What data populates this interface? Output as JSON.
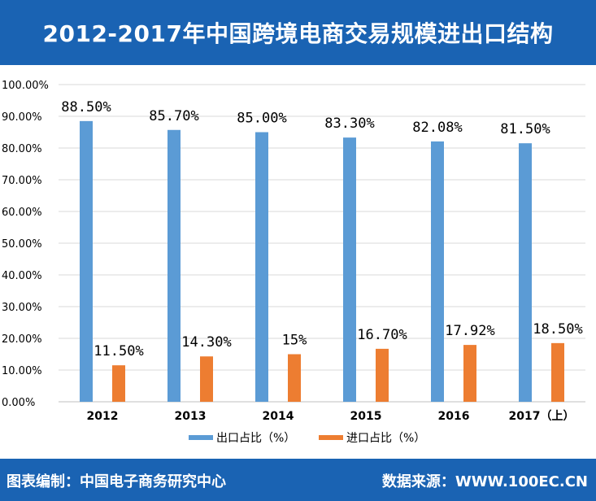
{
  "header": {
    "title": "2012-2017年中国跨境电商交易规模进出口结构"
  },
  "footer": {
    "left_text": "图表编制：中国电子商务研究中心",
    "right_text": "数据来源：WWW.100EC.CN"
  },
  "colors": {
    "header_bg": "#1a63b3",
    "export_bar": "#5b9bd5",
    "import_bar": "#ed7d31",
    "grid": "#d9d9d9"
  },
  "chart_data": {
    "type": "bar",
    "title": "2012-2017年中国跨境电商交易规模进出口结构",
    "categories": [
      "2012",
      "2013",
      "2014",
      "2015",
      "2016",
      "2017（上）"
    ],
    "series": [
      {
        "name": "出口占比（%）",
        "values": [
          88.5,
          85.7,
          85.0,
          83.3,
          82.08,
          81.5
        ],
        "labels": [
          "88.50%",
          "85.70%",
          "85.00%",
          "83.30%",
          "82.08%",
          "81.50%"
        ],
        "color": "#5b9bd5"
      },
      {
        "name": "进口占比（%）",
        "values": [
          11.5,
          14.3,
          15,
          16.7,
          17.92,
          18.5
        ],
        "labels": [
          "11.50%",
          "14.30%",
          "15%",
          "16.70%",
          "17.92%",
          "18.50%"
        ],
        "color": "#ed7d31"
      }
    ],
    "ylim": [
      0,
      100
    ],
    "yticks": [
      "0.00%",
      "10.00%",
      "20.00%",
      "30.00%",
      "40.00%",
      "50.00%",
      "60.00%",
      "70.00%",
      "80.00%",
      "90.00%",
      "100.00%"
    ],
    "grid": true,
    "legend": "bottom"
  }
}
